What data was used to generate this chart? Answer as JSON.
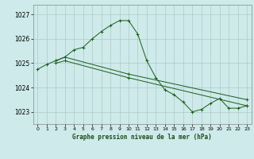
{
  "title": "Graphe pression niveau de la mer (hPa)",
  "bg_color": "#ceeaea",
  "grid_color": "#b0c8c8",
  "line_color": "#1a5c1a",
  "xlim": [
    -0.5,
    23.5
  ],
  "ylim": [
    1022.5,
    1027.4
  ],
  "yticks": [
    1023,
    1024,
    1025,
    1026,
    1027
  ],
  "xticks": [
    0,
    1,
    2,
    3,
    4,
    5,
    6,
    7,
    8,
    9,
    10,
    11,
    12,
    13,
    14,
    15,
    16,
    17,
    18,
    19,
    20,
    21,
    22,
    23
  ],
  "series": [
    {
      "x": [
        0,
        1,
        2,
        3,
        4,
        5,
        6,
        7,
        8,
        9,
        10,
        11,
        12,
        13,
        14,
        15,
        16,
        17,
        18,
        19,
        20,
        21,
        22,
        23
      ],
      "y": [
        1024.75,
        1024.95,
        1025.1,
        1025.25,
        1025.55,
        1025.65,
        1026.0,
        1026.3,
        1026.55,
        1026.75,
        1026.75,
        1026.2,
        1025.1,
        1024.4,
        1023.9,
        1023.7,
        1023.4,
        1023.0,
        1023.1,
        1023.35,
        1023.55,
        1023.15,
        1023.15,
        1023.25
      ]
    },
    {
      "x": [
        2,
        3,
        10,
        23
      ],
      "y": [
        1025.1,
        1025.25,
        1024.55,
        1023.5
      ]
    },
    {
      "x": [
        2,
        3,
        10,
        23
      ],
      "y": [
        1025.0,
        1025.1,
        1024.4,
        1023.25
      ]
    }
  ]
}
